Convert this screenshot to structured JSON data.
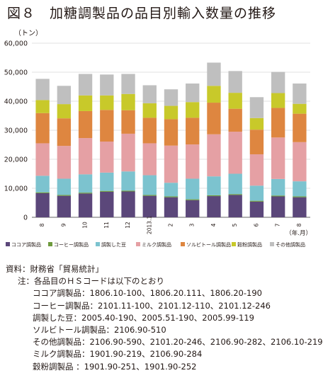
{
  "header": {
    "title": "図８　加糖調製品の品目別輸入数量の推移",
    "unit": "（トン）",
    "x_unit": "（年.月）"
  },
  "colors": {
    "cocoa": "#5b477a",
    "coffee": "#6e9a3d",
    "bean": "#7cc3cf",
    "milk": "#e5a0a4",
    "sorbitol": "#de8640",
    "cereal": "#c8c92a",
    "other": "#bfbfbf"
  },
  "chart_data": {
    "type": "bar",
    "stacked": true,
    "ylim": [
      0,
      60000
    ],
    "yticks": [
      "0",
      "10,000",
      "20,000",
      "30,000",
      "40,000",
      "50,000",
      "60,000"
    ],
    "categories": [
      "8",
      "9",
      "10",
      "11",
      "12",
      "2013.1",
      "2",
      "3",
      "4",
      "5",
      "6",
      "7",
      "8"
    ],
    "series": [
      {
        "name": "ココア調製品",
        "key": "cocoa",
        "values": [
          8300,
          7400,
          8200,
          8800,
          8900,
          7400,
          6900,
          5900,
          7300,
          7700,
          5400,
          7200,
          6900
        ]
      },
      {
        "name": "コーヒー調製品",
        "key": "coffee",
        "values": [
          300,
          300,
          300,
          300,
          300,
          300,
          300,
          300,
          300,
          300,
          300,
          300,
          300
        ]
      },
      {
        "name": "調製した豆",
        "key": "bean",
        "values": [
          5700,
          5600,
          6300,
          6300,
          6600,
          6800,
          4700,
          7100,
          6500,
          7000,
          5200,
          5700,
          5200
        ]
      },
      {
        "name": "ミルク調製品",
        "key": "milk",
        "values": [
          11200,
          11300,
          12500,
          10700,
          13000,
          11000,
          12800,
          11800,
          14500,
          14500,
          10800,
          14300,
          13500
        ]
      },
      {
        "name": "ソルビトール調製品",
        "key": "sorbitol",
        "values": [
          10400,
          9500,
          9300,
          10900,
          8100,
          8800,
          9100,
          9200,
          10900,
          7900,
          8500,
          10200,
          9800
        ]
      },
      {
        "name": "穀粉調製品",
        "key": "cereal",
        "values": [
          4500,
          4900,
          5400,
          5000,
          5600,
          5000,
          4600,
          5400,
          5800,
          5500,
          4000,
          5100,
          3400
        ]
      },
      {
        "name": "その他調製品",
        "key": "other",
        "values": [
          7300,
          6300,
          7400,
          7200,
          6900,
          6200,
          5700,
          6400,
          8000,
          7500,
          7200,
          7300,
          7000
        ]
      }
    ]
  },
  "notes": {
    "source": "資料：財務省「貿易統計」",
    "note_head": "注：各品目のＨＳコードは以下のとおり",
    "lines": [
      "ココア調製品：1806.10-100、1806.20.111、1806.20-190",
      "コーヒー調製品：2101.11-100、2101.12-110、2101.12-246",
      "調製した豆：2005.40-190、2005.51-190、2005.99-119",
      "ソルビトール調製品：2106.90-510",
      "その他調製品：2106.90-590、2101.20-246、2106.90-282、2106.10-219",
      "ミルク調製品：1901.90-219、2106.90-284",
      "穀粉調製品 ：1901.90-251、1901.90-252"
    ]
  }
}
